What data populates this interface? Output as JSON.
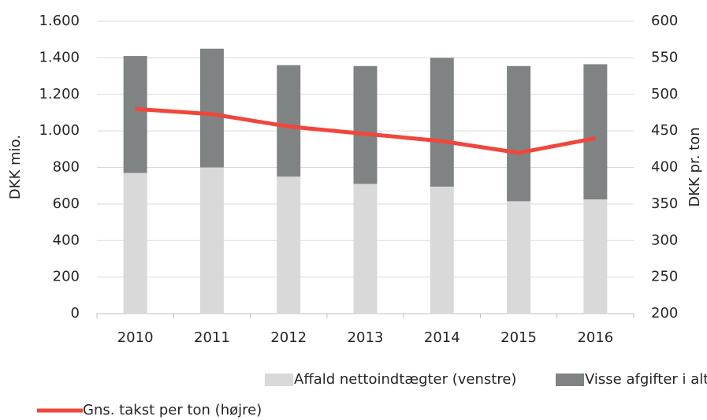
{
  "chart_data": {
    "type": "bar",
    "stacked": true,
    "categories": [
      "2010",
      "2011",
      "2012",
      "2013",
      "2014",
      "2015",
      "2016"
    ],
    "series": [
      {
        "name": "Affald nettoindtægter (venstre)",
        "color": "#d9d9d9",
        "values": [
          770,
          800,
          750,
          710,
          695,
          615,
          625
        ]
      },
      {
        "name": "Visse afgifter i alt (venstre)",
        "color": "#808383",
        "values": [
          640,
          650,
          610,
          645,
          705,
          740,
          740
        ]
      },
      {
        "name": "Gns. takst per ton (højre)",
        "color": "#f0463c",
        "type": "line",
        "axis": "y2",
        "values": [
          480,
          473,
          456,
          446,
          436,
          420,
          440
        ]
      }
    ],
    "ylabel": "DKK mio.",
    "y2label": "DKK pr. ton",
    "ylim": [
      0,
      1600
    ],
    "yticks": [
      0,
      200,
      400,
      600,
      800,
      {
        "value": 1000,
        "label": "1.000"
      },
      {
        "value": 1200,
        "label": "1.200"
      },
      {
        "value": 1400,
        "label": "1.400"
      },
      {
        "value": 1600,
        "label": "1.600"
      }
    ],
    "y2lim": [
      200,
      600
    ],
    "y2ticks": [
      200,
      250,
      300,
      350,
      400,
      450,
      500,
      550,
      600
    ],
    "grid": true,
    "legend": "bottom"
  }
}
